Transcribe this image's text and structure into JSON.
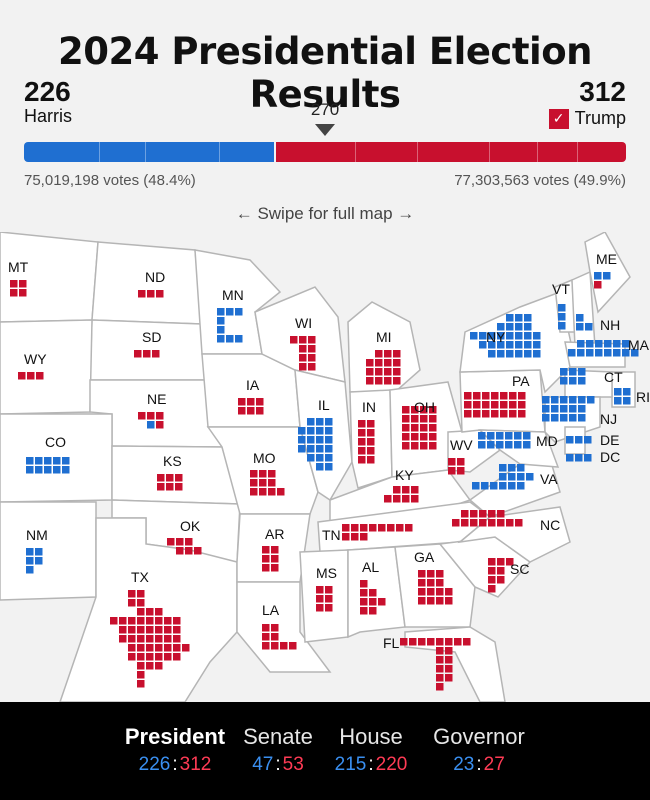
{
  "title": "2024 Presidential Election Results",
  "top_partial": "~ ~~~~~~~~~",
  "harris": {
    "electoral_votes": "226",
    "name": "Harris",
    "votes": "75,019,198 votes (48.4%)"
  },
  "trump": {
    "electoral_votes": "312",
    "name": "Trump",
    "votes": "77,303,563 votes (49.9%)"
  },
  "threshold": "270",
  "swipe_hint": "← Swipe for full map →",
  "colors": {
    "dem": "#1f6fd1",
    "rep": "#c8102e",
    "dem_text": "#3a8ff0",
    "rep_text": "#ff3b55"
  },
  "states": [
    {
      "abbr": "MT",
      "winner": "R"
    },
    {
      "abbr": "ND",
      "winner": "R"
    },
    {
      "abbr": "SD",
      "winner": "R"
    },
    {
      "abbr": "WY",
      "winner": "R"
    },
    {
      "abbr": "NE",
      "winner": "R"
    },
    {
      "abbr": "CO",
      "winner": "D"
    },
    {
      "abbr": "KS",
      "winner": "R"
    },
    {
      "abbr": "NM",
      "winner": "D"
    },
    {
      "abbr": "OK",
      "winner": "R"
    },
    {
      "abbr": "TX",
      "winner": "R"
    },
    {
      "abbr": "MN",
      "winner": "D"
    },
    {
      "abbr": "IA",
      "winner": "R"
    },
    {
      "abbr": "MO",
      "winner": "R"
    },
    {
      "abbr": "AR",
      "winner": "R"
    },
    {
      "abbr": "LA",
      "winner": "R"
    },
    {
      "abbr": "WI",
      "winner": "R"
    },
    {
      "abbr": "IL",
      "winner": "D"
    },
    {
      "abbr": "MI",
      "winner": "R"
    },
    {
      "abbr": "IN",
      "winner": "R"
    },
    {
      "abbr": "OH",
      "winner": "R"
    },
    {
      "abbr": "KY",
      "winner": "R"
    },
    {
      "abbr": "TN",
      "winner": "R"
    },
    {
      "abbr": "MS",
      "winner": "R"
    },
    {
      "abbr": "AL",
      "winner": "R"
    },
    {
      "abbr": "GA",
      "winner": "R"
    },
    {
      "abbr": "FL",
      "winner": "R"
    },
    {
      "abbr": "SC",
      "winner": "R"
    },
    {
      "abbr": "NC",
      "winner": "R"
    },
    {
      "abbr": "VA",
      "winner": "D"
    },
    {
      "abbr": "WV",
      "winner": "R"
    },
    {
      "abbr": "PA",
      "winner": "R"
    },
    {
      "abbr": "NY",
      "winner": "D"
    },
    {
      "abbr": "VT",
      "winner": "D"
    },
    {
      "abbr": "NH",
      "winner": "D"
    },
    {
      "abbr": "ME",
      "winner": "D"
    },
    {
      "abbr": "MA",
      "winner": "D"
    },
    {
      "abbr": "RI",
      "winner": "D"
    },
    {
      "abbr": "CT",
      "winner": "D"
    },
    {
      "abbr": "NJ",
      "winner": "D"
    },
    {
      "abbr": "DE",
      "winner": "D"
    },
    {
      "abbr": "MD",
      "winner": "D"
    },
    {
      "abbr": "DC",
      "winner": "D"
    }
  ],
  "tabs": [
    {
      "label": "President",
      "dem": "226",
      "rep": "312",
      "active": true
    },
    {
      "label": "Senate",
      "dem": "47",
      "rep": "53",
      "active": false
    },
    {
      "label": "House",
      "dem": "215",
      "rep": "220",
      "active": false
    },
    {
      "label": "Governor",
      "dem": "23",
      "rep": "27",
      "active": false
    }
  ]
}
